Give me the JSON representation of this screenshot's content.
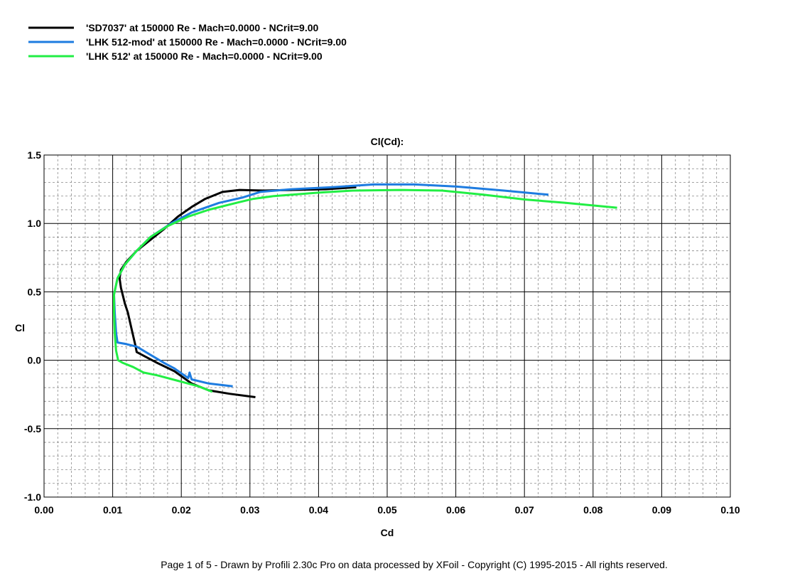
{
  "footer": "Page 1 of 5   -   Drawn by Profili 2.30c Pro on data processed by  XFoil - Copyright (C) 1995-2015 - All rights reserved.",
  "chart_data": {
    "type": "line",
    "title": "Cl(Cd):",
    "xlabel": "Cd",
    "ylabel": "Cl",
    "xlim": [
      0.0,
      0.1
    ],
    "ylim": [
      -1.0,
      1.5
    ],
    "xticks": [
      "0.00",
      "0.01",
      "0.02",
      "0.03",
      "0.04",
      "0.05",
      "0.06",
      "0.07",
      "0.08",
      "0.09",
      "0.10"
    ],
    "yticks": [
      "1.5",
      "1.0",
      "0.5",
      "0.0",
      "-0.5",
      "-1.0"
    ],
    "grid": true,
    "minor_grid": true,
    "legend_position": "top-left",
    "series": [
      {
        "name": "'SD7037' at 150000 Re - Mach=0.0000 - NCrit=9.00",
        "color": "#000000",
        "points": [
          [
            0.0308,
            -0.27
          ],
          [
            0.027,
            -0.245
          ],
          [
            0.024,
            -0.22
          ],
          [
            0.0215,
            -0.17
          ],
          [
            0.019,
            -0.08
          ],
          [
            0.0165,
            -0.02
          ],
          [
            0.0135,
            0.06
          ],
          [
            0.0133,
            0.11
          ],
          [
            0.0128,
            0.22
          ],
          [
            0.0122,
            0.35
          ],
          [
            0.0118,
            0.41
          ],
          [
            0.0112,
            0.53
          ],
          [
            0.011,
            0.6
          ],
          [
            0.0112,
            0.66
          ],
          [
            0.012,
            0.72
          ],
          [
            0.0135,
            0.8
          ],
          [
            0.0155,
            0.88
          ],
          [
            0.0175,
            0.96
          ],
          [
            0.0195,
            1.05
          ],
          [
            0.0215,
            1.12
          ],
          [
            0.0235,
            1.18
          ],
          [
            0.026,
            1.23
          ],
          [
            0.0285,
            1.245
          ],
          [
            0.032,
            1.24
          ],
          [
            0.036,
            1.245
          ],
          [
            0.041,
            1.25
          ],
          [
            0.0455,
            1.265
          ]
        ]
      },
      {
        "name": "'LHK  512-mod' at 150000 Re - Mach=0.0000 - NCrit=9.00",
        "color": "#1e7ce0",
        "points": [
          [
            0.0275,
            -0.19
          ],
          [
            0.024,
            -0.17
          ],
          [
            0.0215,
            -0.14
          ],
          [
            0.0212,
            -0.09
          ],
          [
            0.021,
            -0.13
          ],
          [
            0.019,
            -0.06
          ],
          [
            0.0175,
            -0.02
          ],
          [
            0.0155,
            0.04
          ],
          [
            0.0135,
            0.1
          ],
          [
            0.0118,
            0.12
          ],
          [
            0.0107,
            0.13
          ],
          [
            0.0105,
            0.2
          ],
          [
            0.0103,
            0.35
          ],
          [
            0.0102,
            0.48
          ],
          [
            0.0107,
            0.6
          ],
          [
            0.0118,
            0.7
          ],
          [
            0.0135,
            0.8
          ],
          [
            0.0155,
            0.9
          ],
          [
            0.0185,
            1.0
          ],
          [
            0.0215,
            1.08
          ],
          [
            0.0255,
            1.15
          ],
          [
            0.029,
            1.19
          ],
          [
            0.0315,
            1.23
          ],
          [
            0.036,
            1.25
          ],
          [
            0.042,
            1.265
          ],
          [
            0.048,
            1.285
          ],
          [
            0.054,
            1.285
          ],
          [
            0.06,
            1.27
          ],
          [
            0.067,
            1.24
          ],
          [
            0.0735,
            1.21
          ]
        ]
      },
      {
        "name": "'LHK  512' at 150000 Re - Mach=0.0000 - NCrit=9.00",
        "color": "#22ee44",
        "points": [
          [
            0.0245,
            -0.23
          ],
          [
            0.0225,
            -0.19
          ],
          [
            0.0195,
            -0.15
          ],
          [
            0.0165,
            -0.11
          ],
          [
            0.0145,
            -0.09
          ],
          [
            0.013,
            -0.05
          ],
          [
            0.0115,
            -0.02
          ],
          [
            0.0108,
            0.0
          ],
          [
            0.0105,
            0.07
          ],
          [
            0.0103,
            0.2
          ],
          [
            0.0102,
            0.35
          ],
          [
            0.0102,
            0.48
          ],
          [
            0.0107,
            0.6
          ],
          [
            0.0118,
            0.7
          ],
          [
            0.0135,
            0.8
          ],
          [
            0.0155,
            0.9
          ],
          [
            0.018,
            0.98
          ],
          [
            0.021,
            1.05
          ],
          [
            0.024,
            1.1
          ],
          [
            0.028,
            1.15
          ],
          [
            0.0305,
            1.18
          ],
          [
            0.0335,
            1.2
          ],
          [
            0.04,
            1.225
          ],
          [
            0.045,
            1.24
          ],
          [
            0.052,
            1.245
          ],
          [
            0.058,
            1.24
          ],
          [
            0.064,
            1.21
          ],
          [
            0.07,
            1.175
          ],
          [
            0.076,
            1.15
          ],
          [
            0.0835,
            1.115
          ]
        ]
      }
    ]
  }
}
